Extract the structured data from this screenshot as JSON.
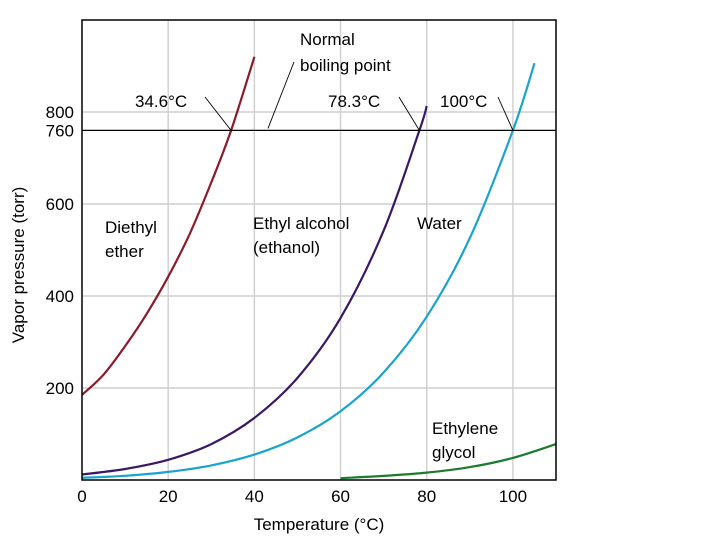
{
  "chart_data": {
    "type": "line",
    "title": "",
    "xlabel": "Temperature (°C)",
    "ylabel": "Vapor pressure (torr)",
    "xlim": [
      0,
      110
    ],
    "ylim": [
      0,
      1000
    ],
    "x_ticks": [
      0,
      20,
      40,
      60,
      80,
      100
    ],
    "y_ticks": [
      200,
      400,
      600,
      760,
      800
    ],
    "grid": true,
    "reference_line": {
      "y": 760,
      "label": "Normal boiling point"
    },
    "series": [
      {
        "name": "Diethyl ether",
        "label_lines": [
          "Diethyl",
          "ether"
        ],
        "color": "#8B1A2B",
        "x": [
          0,
          5,
          10,
          15,
          20,
          25,
          30,
          34.6,
          40
        ],
        "y": [
          185,
          229,
          291,
          361,
          442,
          535,
          647,
          760,
          920
        ]
      },
      {
        "name": "Ethyl alcohol (ethanol)",
        "label_lines": [
          "Ethyl alcohol",
          "(ethanol)"
        ],
        "color": "#3A1866",
        "x": [
          0,
          10,
          20,
          30,
          40,
          50,
          60,
          70,
          78.3,
          80
        ],
        "y": [
          12,
          24,
          44,
          78,
          135,
          222,
          352,
          542,
          760,
          813
        ]
      },
      {
        "name": "Water",
        "label_lines": [
          "Water"
        ],
        "color": "#1AA3CC",
        "x": [
          0,
          10,
          20,
          30,
          40,
          50,
          60,
          70,
          80,
          90,
          100,
          105
        ],
        "y": [
          4.6,
          9.2,
          17.5,
          31.8,
          55.3,
          92.5,
          149.4,
          233.7,
          355.1,
          525.8,
          760,
          906
        ]
      },
      {
        "name": "Ethylene glycol",
        "label_lines": [
          "Ethylene",
          "glycol"
        ],
        "color": "#1E7A2E",
        "x": [
          60,
          70,
          80,
          90,
          100,
          110
        ],
        "y": [
          4,
          9,
          16,
          28,
          48,
          78
        ]
      }
    ],
    "annotations": [
      {
        "text": "34.6°C",
        "x": 34.6,
        "y": 760
      },
      {
        "text": "78.3°C",
        "x": 78.3,
        "y": 760
      },
      {
        "text": "100°C",
        "x": 100,
        "y": 760
      }
    ]
  }
}
